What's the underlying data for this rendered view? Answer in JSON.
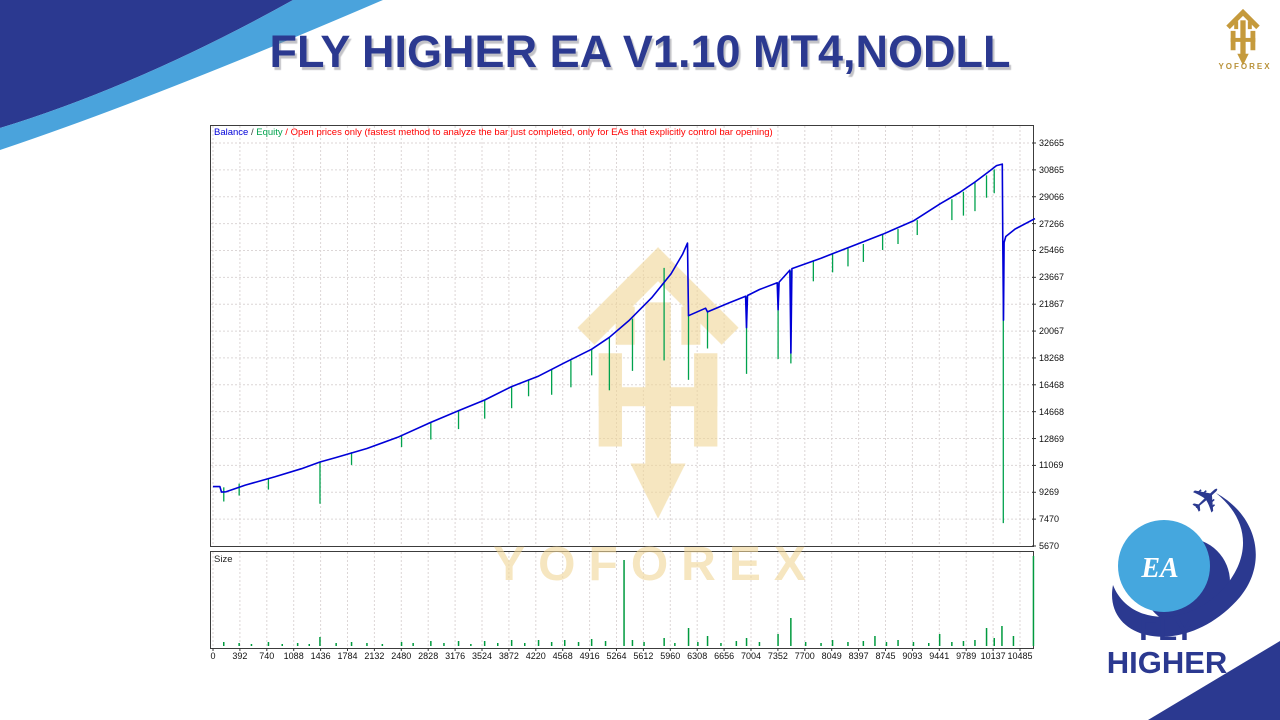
{
  "title": "FLY HIGHER EA V1.10 MT4,NODLL",
  "branding": {
    "top_logo": {
      "brand": "YOFOREX"
    },
    "watermark_text": "YOFOREX",
    "bottom_logo": {
      "badge": "EA",
      "line1": "FLY",
      "line2": "HIGHER"
    }
  },
  "colors": {
    "navy": "#2b3990",
    "light_blue": "#4aa3dc",
    "globe_blue": "#45a7de",
    "gold": "#c59a3c",
    "watermark_gold": "#f0d696",
    "mt_blue": "#0000d8",
    "mt_green": "#00a24d",
    "mt_red": "#ff0000",
    "grid": "#dcd6d6",
    "bar_green": "#009a3e"
  },
  "chart_data": {
    "type": "line",
    "legend": {
      "balance": "Balance",
      "sep": " / ",
      "equity": "Equity",
      "note": "Open prices only (fastest method to analyze the bar just completed, only for EAs that explicitly control bar opening)"
    },
    "y_ticks": [
      32665,
      30865,
      29066,
      27266,
      25466,
      23667,
      21867,
      20067,
      18268,
      16468,
      14668,
      12869,
      11069,
      9269,
      7470,
      5670
    ],
    "x_ticks": [
      0,
      392,
      740,
      1088,
      1436,
      1784,
      2132,
      2480,
      2828,
      3176,
      3524,
      3872,
      4220,
      4568,
      4916,
      5264,
      5612,
      5960,
      6308,
      6656,
      7004,
      7352,
      7700,
      8049,
      8397,
      8745,
      9093,
      9441,
      9789,
      10137,
      10485
    ],
    "x_max": 10680,
    "y_min": 5670,
    "y_max": 32665,
    "grid": true,
    "series": [
      {
        "name": "Balance",
        "points": [
          [
            0,
            9650
          ],
          [
            90,
            9650
          ],
          [
            110,
            9280
          ],
          [
            170,
            9300
          ],
          [
            420,
            9750
          ],
          [
            800,
            10300
          ],
          [
            1150,
            10850
          ],
          [
            1390,
            11300
          ],
          [
            1600,
            11600
          ],
          [
            2000,
            12200
          ],
          [
            2400,
            12950
          ],
          [
            2830,
            13950
          ],
          [
            3200,
            14750
          ],
          [
            3530,
            15450
          ],
          [
            3880,
            16350
          ],
          [
            4230,
            17050
          ],
          [
            4570,
            17950
          ],
          [
            4920,
            18850
          ],
          [
            5150,
            19650
          ],
          [
            5400,
            20750
          ],
          [
            5700,
            22300
          ],
          [
            5950,
            23900
          ],
          [
            6100,
            25200
          ],
          [
            6165,
            25960
          ],
          [
            6178,
            21100
          ],
          [
            6400,
            21600
          ],
          [
            6425,
            21350
          ],
          [
            6700,
            21950
          ],
          [
            6920,
            22400
          ],
          [
            6932,
            20300
          ],
          [
            6945,
            22450
          ],
          [
            7100,
            22850
          ],
          [
            7330,
            23300
          ],
          [
            7342,
            21500
          ],
          [
            7355,
            23350
          ],
          [
            7495,
            24150
          ],
          [
            7508,
            18600
          ],
          [
            7522,
            24250
          ],
          [
            7900,
            24950
          ],
          [
            8300,
            25750
          ],
          [
            8700,
            26550
          ],
          [
            9100,
            27450
          ],
          [
            9450,
            28600
          ],
          [
            9700,
            29350
          ],
          [
            9900,
            30050
          ],
          [
            10080,
            30750
          ],
          [
            10180,
            31150
          ],
          [
            10255,
            31250
          ],
          [
            10262,
            25900
          ],
          [
            10270,
            20800
          ],
          [
            10278,
            26000
          ],
          [
            10300,
            26400
          ],
          [
            10420,
            26900
          ],
          [
            10680,
            27600
          ]
        ]
      },
      {
        "name": "Equity",
        "spikes": [
          [
            140,
            9600,
            8650
          ],
          [
            340,
            9850,
            9050
          ],
          [
            720,
            10150,
            9450
          ],
          [
            1390,
            11300,
            8500
          ],
          [
            1800,
            11950,
            11100
          ],
          [
            2450,
            13100,
            12300
          ],
          [
            2830,
            13950,
            12800
          ],
          [
            3190,
            14700,
            13500
          ],
          [
            3530,
            15450,
            14200
          ],
          [
            3880,
            16350,
            14900
          ],
          [
            4100,
            16800,
            15700
          ],
          [
            4400,
            17500,
            15800
          ],
          [
            4650,
            18100,
            16300
          ],
          [
            4920,
            18850,
            17100
          ],
          [
            5150,
            19650,
            16100
          ],
          [
            5450,
            20900,
            17400
          ],
          [
            5861,
            24300,
            18100
          ],
          [
            6178,
            21100,
            16800
          ],
          [
            6425,
            21350,
            18900
          ],
          [
            6932,
            22400,
            17200
          ],
          [
            7342,
            23300,
            18200
          ],
          [
            7508,
            24100,
            17900
          ],
          [
            7800,
            24800,
            23400
          ],
          [
            8050,
            25300,
            24000
          ],
          [
            8250,
            25600,
            24400
          ],
          [
            8450,
            25900,
            24700
          ],
          [
            8700,
            26550,
            25500
          ],
          [
            8900,
            26900,
            25900
          ],
          [
            9150,
            27500,
            26500
          ],
          [
            9600,
            28900,
            27500
          ],
          [
            9750,
            29400,
            27800
          ],
          [
            9900,
            30050,
            28100
          ],
          [
            10050,
            30500,
            29000
          ],
          [
            10150,
            30900,
            29300
          ],
          [
            10268,
            26000,
            7200
          ]
        ]
      }
    ],
    "size_panel": {
      "label": "Size",
      "bars": [
        [
          140,
          4
        ],
        [
          340,
          3
        ],
        [
          500,
          2
        ],
        [
          720,
          4
        ],
        [
          900,
          2
        ],
        [
          1100,
          3
        ],
        [
          1250,
          2
        ],
        [
          1390,
          9
        ],
        [
          1600,
          3
        ],
        [
          1800,
          4
        ],
        [
          2000,
          3
        ],
        [
          2200,
          2
        ],
        [
          2450,
          4
        ],
        [
          2600,
          3
        ],
        [
          2830,
          5
        ],
        [
          3000,
          3
        ],
        [
          3190,
          5
        ],
        [
          3350,
          2
        ],
        [
          3530,
          5
        ],
        [
          3700,
          3
        ],
        [
          3880,
          6
        ],
        [
          4050,
          3
        ],
        [
          4230,
          6
        ],
        [
          4400,
          4
        ],
        [
          4570,
          6
        ],
        [
          4750,
          4
        ],
        [
          4920,
          7
        ],
        [
          5100,
          5
        ],
        [
          5340,
          86
        ],
        [
          5450,
          6
        ],
        [
          5600,
          4
        ],
        [
          5861,
          8
        ],
        [
          6000,
          3
        ],
        [
          6178,
          18
        ],
        [
          6300,
          4
        ],
        [
          6425,
          10
        ],
        [
          6600,
          3
        ],
        [
          6800,
          5
        ],
        [
          6932,
          8
        ],
        [
          7100,
          4
        ],
        [
          7342,
          12
        ],
        [
          7508,
          28
        ],
        [
          7700,
          4
        ],
        [
          7900,
          3
        ],
        [
          8050,
          6
        ],
        [
          8250,
          4
        ],
        [
          8450,
          5
        ],
        [
          8600,
          10
        ],
        [
          8750,
          4
        ],
        [
          8900,
          6
        ],
        [
          9100,
          4
        ],
        [
          9300,
          3
        ],
        [
          9441,
          12
        ],
        [
          9600,
          4
        ],
        [
          9750,
          5
        ],
        [
          9900,
          6
        ],
        [
          10050,
          18
        ],
        [
          10150,
          8
        ],
        [
          10250,
          20
        ],
        [
          10400,
          10
        ],
        [
          10660,
          90
        ]
      ]
    }
  }
}
